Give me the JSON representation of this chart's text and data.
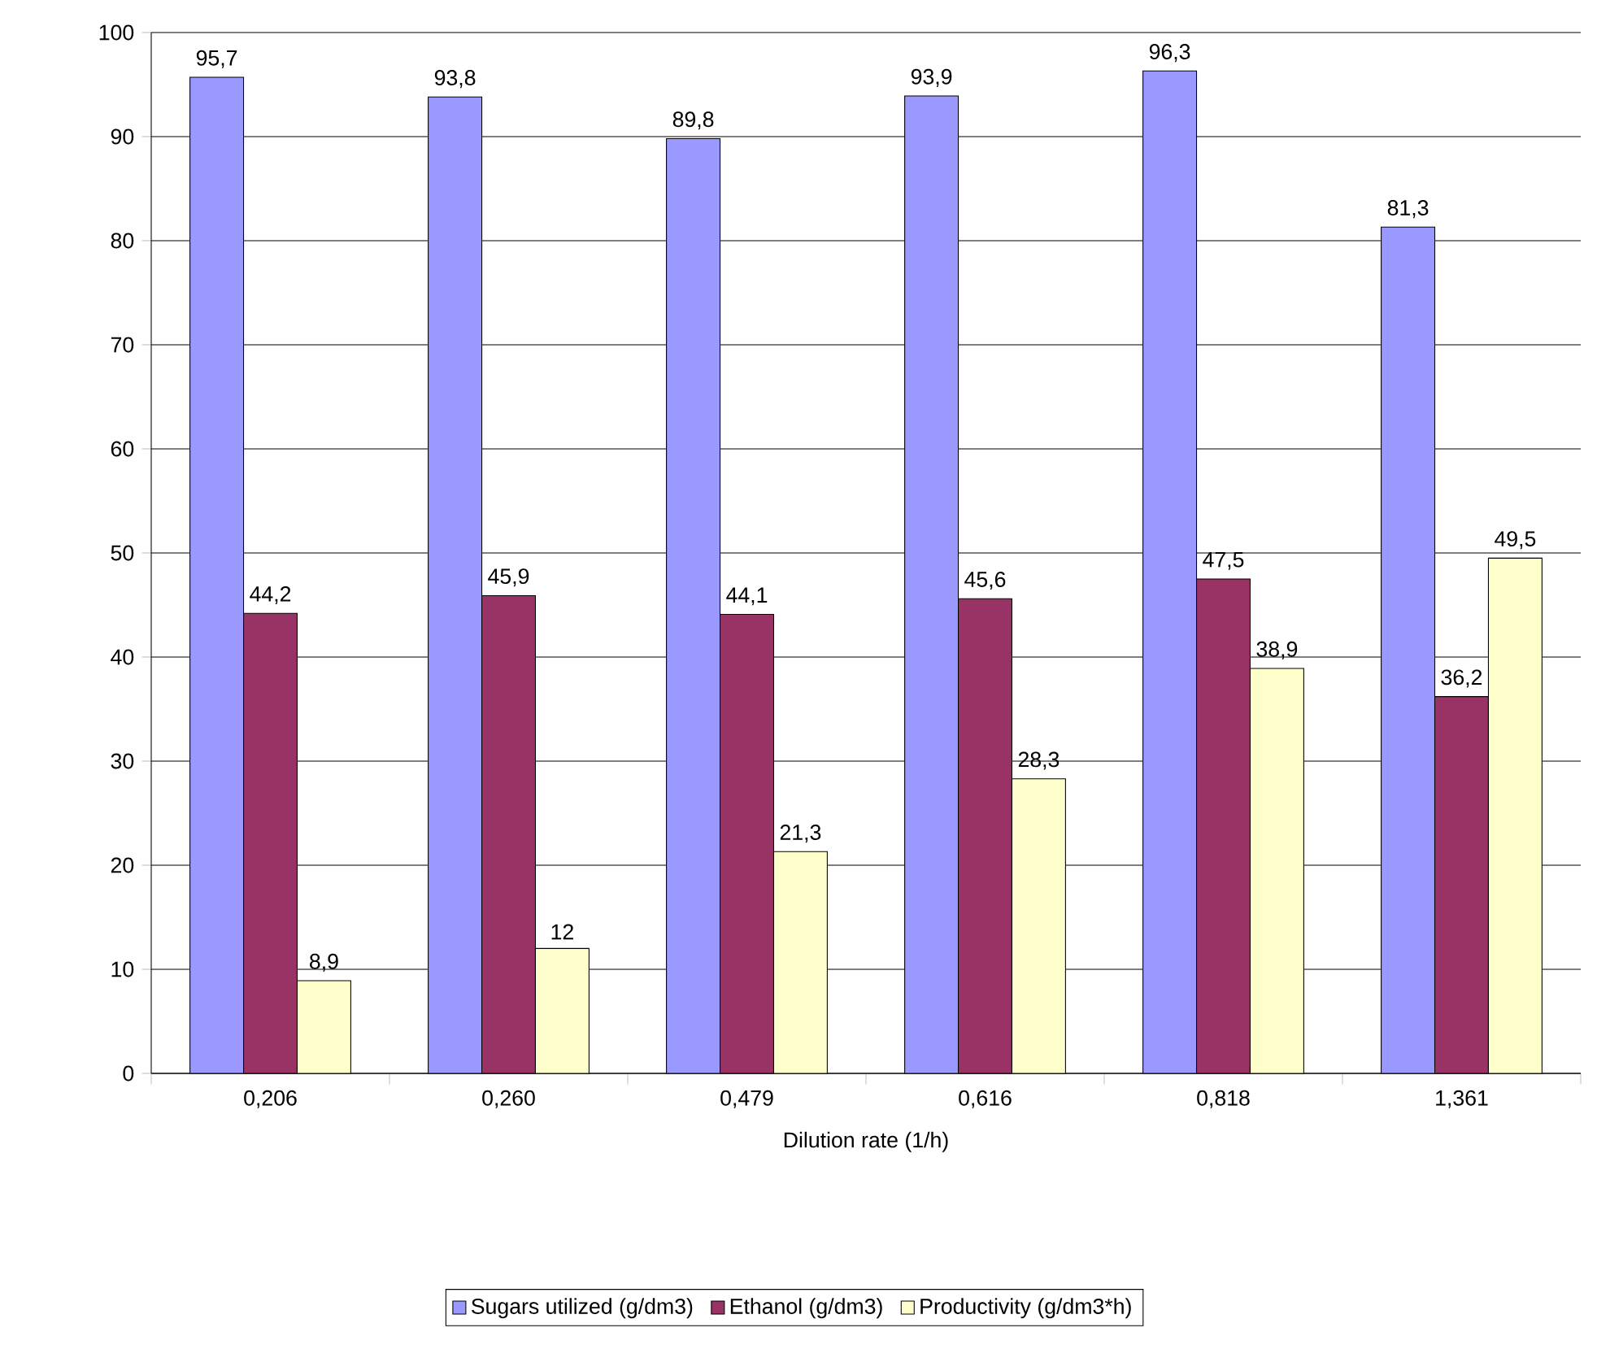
{
  "chart_data": {
    "type": "bar",
    "xlabel": "Dilution rate (1/h)",
    "categories": [
      "0,206",
      "0,260",
      "0,479",
      "0,616",
      "0,818",
      "1,361"
    ],
    "series": [
      {
        "name": "Sugars utilized (g/dm3)",
        "color": "#9999ff",
        "values": [
          95.7,
          93.8,
          89.8,
          93.9,
          96.3,
          81.3
        ],
        "value_labels": [
          "95,7",
          "93,8",
          "89,8",
          "93,9",
          "96,3",
          "81,3"
        ]
      },
      {
        "name": "Ethanol (g/dm3)",
        "color": "#993366",
        "values": [
          44.2,
          45.9,
          44.1,
          45.6,
          47.5,
          36.2
        ],
        "value_labels": [
          "44,2",
          "45,9",
          "44,1",
          "45,6",
          "47,5",
          "36,2"
        ]
      },
      {
        "name": "Productivity (g/dm3*h)",
        "color": "#ffffcc",
        "values": [
          8.9,
          12,
          21.3,
          28.3,
          38.9,
          49.5
        ],
        "value_labels": [
          "8,9",
          "12",
          "21,3",
          "28,3",
          "38,9",
          "49,5"
        ]
      }
    ],
    "ylim": [
      0,
      100
    ],
    "yticks": [
      0,
      10,
      20,
      30,
      40,
      50,
      60,
      70,
      80,
      90,
      100
    ],
    "grid": "y",
    "legend": "bottom"
  }
}
